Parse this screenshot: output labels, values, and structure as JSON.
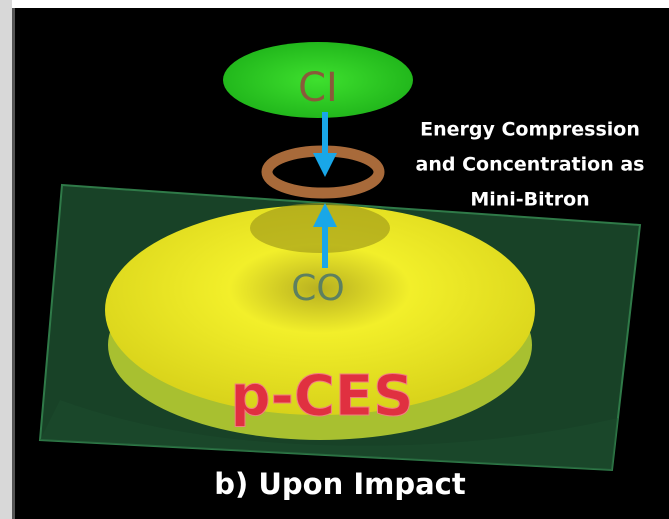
{
  "labels": {
    "top": "CI",
    "bottom": "CO",
    "surface": "p-CES"
  },
  "annotation": [
    "Energy Compression",
    "and Concentration as",
    "Mini-Bitron"
  ],
  "caption": "b) Upon Impact"
}
